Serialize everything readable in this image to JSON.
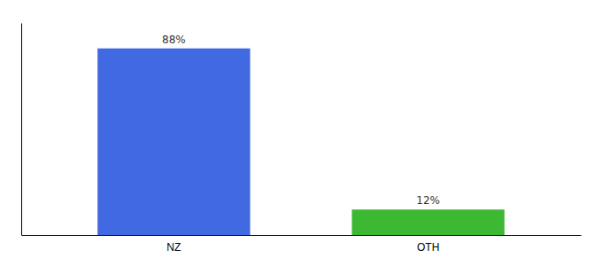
{
  "chart_data": {
    "type": "bar",
    "categories": [
      "NZ",
      "OTH"
    ],
    "values": [
      88,
      12
    ],
    "value_labels": [
      "88%",
      "12%"
    ],
    "colors": [
      "#4169e1",
      "#3cb832"
    ],
    "ylim": [
      0,
      100
    ],
    "yticks": [],
    "grid": false,
    "data_labels": true,
    "tick_labels": "x"
  }
}
